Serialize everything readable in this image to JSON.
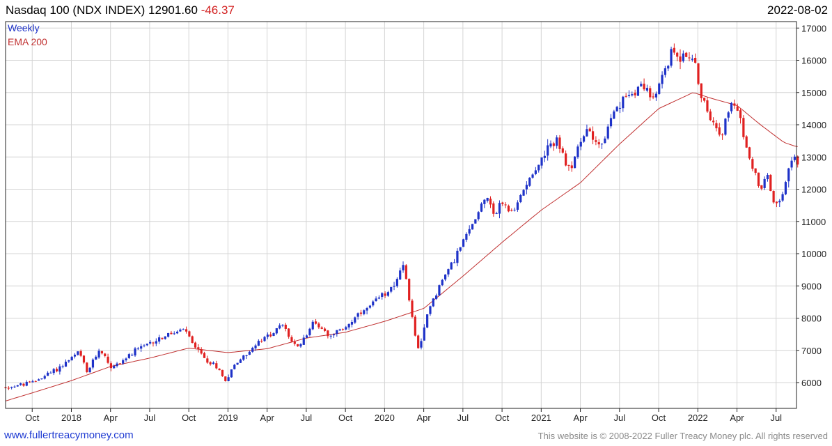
{
  "header": {
    "instrument": "Nasdaq 100 (NDX INDEX)",
    "last": "12901.60",
    "change": "-46.37",
    "date": "2022-08-02"
  },
  "footer": {
    "website": "www.fullertreacymoney.com",
    "copyright": "This website is © 2008-2022 Fuller Treacy Money plc. All rights reserved"
  },
  "colors": {
    "up": "#1e32c8",
    "down": "#e02020",
    "ema": "#c03030",
    "grid": "#d4d4d4",
    "legend_weekly": "#1e32c8",
    "legend_ema": "#c03030"
  },
  "chart_data": {
    "type": "candlestick",
    "title": "Nasdaq 100 (NDX INDEX) 12901.60 -46.37",
    "frequency": "Weekly",
    "legend": [
      "Weekly",
      "EMA 200"
    ],
    "legend_position": "top-left",
    "y_axis_position": "right",
    "grid": true,
    "ylim": [
      5200,
      17200
    ],
    "x_range": [
      2017.58,
      2022.63
    ],
    "y_ticks": [
      6000,
      7000,
      8000,
      9000,
      10000,
      11000,
      12000,
      13000,
      14000,
      15000,
      16000,
      17000
    ],
    "x_ticks": [
      {
        "label": "Oct",
        "t": 2017.75
      },
      {
        "label": "2018",
        "t": 2018.0
      },
      {
        "label": "Apr",
        "t": 2018.25
      },
      {
        "label": "Jul",
        "t": 2018.5
      },
      {
        "label": "Oct",
        "t": 2018.75
      },
      {
        "label": "2019",
        "t": 2019.0
      },
      {
        "label": "Apr",
        "t": 2019.25
      },
      {
        "label": "Jul",
        "t": 2019.5
      },
      {
        "label": "Oct",
        "t": 2019.75
      },
      {
        "label": "2020",
        "t": 2020.0
      },
      {
        "label": "Apr",
        "t": 2020.25
      },
      {
        "label": "Jul",
        "t": 2020.5
      },
      {
        "label": "Oct",
        "t": 2020.75
      },
      {
        "label": "2021",
        "t": 2021.0
      },
      {
        "label": "Apr",
        "t": 2021.25
      },
      {
        "label": "Jul",
        "t": 2021.5
      },
      {
        "label": "Oct",
        "t": 2021.75
      },
      {
        "label": "2022",
        "t": 2022.0
      },
      {
        "label": "Apr",
        "t": 2022.25
      },
      {
        "label": "Jul",
        "t": 2022.5
      }
    ],
    "weekly_close_anchors": [
      [
        2017.58,
        5850
      ],
      [
        2017.75,
        6000
      ],
      [
        2017.92,
        6450
      ],
      [
        2018.05,
        6950
      ],
      [
        2018.1,
        6300
      ],
      [
        2018.18,
        7050
      ],
      [
        2018.26,
        6450
      ],
      [
        2018.4,
        6950
      ],
      [
        2018.55,
        7350
      ],
      [
        2018.72,
        7650
      ],
      [
        2018.8,
        7050
      ],
      [
        2018.86,
        6700
      ],
      [
        2018.93,
        6500
      ],
      [
        2018.98,
        6050
      ],
      [
        2019.05,
        6600
      ],
      [
        2019.2,
        7250
      ],
      [
        2019.35,
        7800
      ],
      [
        2019.41,
        7250
      ],
      [
        2019.44,
        7050
      ],
      [
        2019.55,
        7900
      ],
      [
        2019.64,
        7500
      ],
      [
        2019.72,
        7600
      ],
      [
        2019.8,
        7950
      ],
      [
        2019.92,
        8400
      ],
      [
        2020.05,
        9000
      ],
      [
        2020.12,
        9600
      ],
      [
        2020.16,
        8500
      ],
      [
        2020.18,
        7900
      ],
      [
        2020.22,
        6900
      ],
      [
        2020.28,
        8300
      ],
      [
        2020.35,
        9000
      ],
      [
        2020.45,
        9900
      ],
      [
        2020.55,
        10800
      ],
      [
        2020.65,
        11900
      ],
      [
        2020.7,
        11200
      ],
      [
        2020.75,
        11600
      ],
      [
        2020.82,
        11200
      ],
      [
        2020.9,
        12200
      ],
      [
        2021.0,
        12900
      ],
      [
        2021.1,
        13600
      ],
      [
        2021.17,
        12500
      ],
      [
        2021.23,
        13200
      ],
      [
        2021.3,
        13900
      ],
      [
        2021.38,
        13300
      ],
      [
        2021.46,
        14300
      ],
      [
        2021.55,
        14900
      ],
      [
        2021.65,
        15300
      ],
      [
        2021.72,
        14700
      ],
      [
        2021.78,
        15600
      ],
      [
        2021.84,
        16300
      ],
      [
        2021.9,
        16100
      ],
      [
        2021.96,
        16200
      ],
      [
        2022.02,
        15000
      ],
      [
        2022.06,
        14300
      ],
      [
        2022.1,
        14200
      ],
      [
        2022.15,
        13700
      ],
      [
        2022.2,
        14600
      ],
      [
        2022.25,
        14500
      ],
      [
        2022.3,
        13500
      ],
      [
        2022.35,
        12700
      ],
      [
        2022.4,
        12000
      ],
      [
        2022.44,
        12600
      ],
      [
        2022.48,
        11600
      ],
      [
        2022.52,
        11700
      ],
      [
        2022.56,
        12100
      ],
      [
        2022.6,
        12950
      ],
      [
        2022.63,
        12902
      ]
    ],
    "ema_anchors": [
      [
        2017.58,
        5430
      ],
      [
        2017.75,
        5680
      ],
      [
        2018.0,
        6060
      ],
      [
        2018.25,
        6500
      ],
      [
        2018.5,
        6760
      ],
      [
        2018.75,
        7070
      ],
      [
        2019.0,
        6930
      ],
      [
        2019.25,
        7050
      ],
      [
        2019.5,
        7380
      ],
      [
        2019.75,
        7560
      ],
      [
        2020.0,
        7900
      ],
      [
        2020.25,
        8300
      ],
      [
        2020.5,
        9300
      ],
      [
        2020.75,
        10350
      ],
      [
        2021.0,
        11350
      ],
      [
        2021.25,
        12200
      ],
      [
        2021.5,
        13400
      ],
      [
        2021.75,
        14500
      ],
      [
        2021.97,
        15000
      ],
      [
        2022.1,
        14800
      ],
      [
        2022.25,
        14600
      ],
      [
        2022.4,
        14000
      ],
      [
        2022.55,
        13450
      ],
      [
        2022.63,
        13320
      ]
    ]
  }
}
